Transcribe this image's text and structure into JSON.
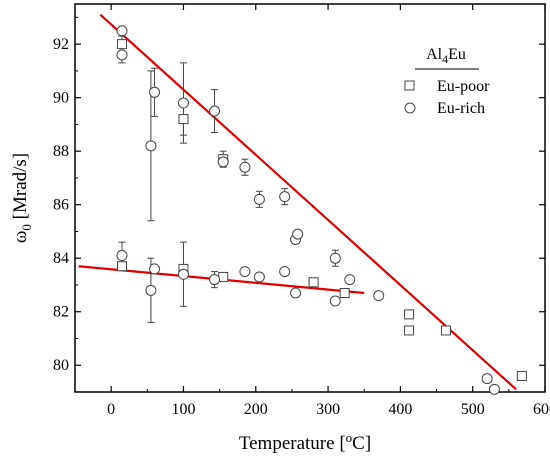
{
  "chart_data": {
    "type": "scatter",
    "title": "",
    "xlabel": {
      "base": "Temperature [",
      "sup": "o",
      "tail": "C]"
    },
    "ylabel": {
      "base": "ω",
      "sub": "0",
      "tail": " [Mrad/s]"
    },
    "xlim": [
      -50,
      600
    ],
    "ylim": [
      79,
      93.5
    ],
    "xticks": [
      0,
      100,
      200,
      300,
      400,
      500,
      600
    ],
    "yticks": [
      80,
      82,
      84,
      86,
      88,
      90,
      92
    ],
    "grid": false,
    "legend": {
      "placement": "top-right",
      "title": {
        "base": "Al",
        "sub": "4",
        "tail": "Eu"
      },
      "entries": [
        {
          "label": "Eu-poor",
          "marker": "square"
        },
        {
          "label": "Eu-rich",
          "marker": "circle"
        }
      ]
    },
    "series": [
      {
        "name": "Eu-poor",
        "marker": "square",
        "points": [
          {
            "x": 15,
            "y": 92.0,
            "err": 0.3
          },
          {
            "x": 15,
            "y": 83.7,
            "err": 0
          },
          {
            "x": 100,
            "y": 89.2,
            "err": 0.6
          },
          {
            "x": 100,
            "y": 83.6,
            "err": 0
          },
          {
            "x": 155,
            "y": 87.7,
            "err": 0.3
          },
          {
            "x": 155,
            "y": 83.3,
            "err": 0
          },
          {
            "x": 280,
            "y": 83.1,
            "err": 0
          },
          {
            "x": 323,
            "y": 82.7,
            "err": 0
          },
          {
            "x": 412,
            "y": 81.3,
            "err": 0
          },
          {
            "x": 412,
            "y": 81.9,
            "err": 0
          },
          {
            "x": 463,
            "y": 81.3,
            "err": 0
          },
          {
            "x": 568,
            "y": 79.6,
            "err": 0
          }
        ]
      },
      {
        "name": "Eu-rich",
        "marker": "circle",
        "points": [
          {
            "x": 15,
            "y": 92.5,
            "err": 0
          },
          {
            "x": 15,
            "y": 91.6,
            "err": 0.3
          },
          {
            "x": 15,
            "y": 84.1,
            "err": 0.5
          },
          {
            "x": 55,
            "y": 88.2,
            "err": 2.8
          },
          {
            "x": 55,
            "y": 82.8,
            "err": 1.2
          },
          {
            "x": 60,
            "y": 90.2,
            "err": 0.9
          },
          {
            "x": 60,
            "y": 83.6,
            "err": 0
          },
          {
            "x": 100,
            "y": 89.8,
            "err": 1.5
          },
          {
            "x": 100,
            "y": 83.4,
            "err": 1.2
          },
          {
            "x": 143,
            "y": 89.5,
            "err": 0.8
          },
          {
            "x": 143,
            "y": 83.2,
            "err": 0.3
          },
          {
            "x": 155,
            "y": 87.6,
            "err": 0
          },
          {
            "x": 185,
            "y": 87.4,
            "err": 0.3
          },
          {
            "x": 185,
            "y": 83.5,
            "err": 0
          },
          {
            "x": 205,
            "y": 86.2,
            "err": 0.3
          },
          {
            "x": 205,
            "y": 83.3,
            "err": 0
          },
          {
            "x": 240,
            "y": 86.3,
            "err": 0.3
          },
          {
            "x": 240,
            "y": 83.5,
            "err": 0
          },
          {
            "x": 255,
            "y": 84.7,
            "err": 0
          },
          {
            "x": 255,
            "y": 82.7,
            "err": 0
          },
          {
            "x": 258,
            "y": 84.9,
            "err": 0
          },
          {
            "x": 310,
            "y": 84.0,
            "err": 0.3
          },
          {
            "x": 310,
            "y": 82.4,
            "err": 0
          },
          {
            "x": 330,
            "y": 83.2,
            "err": 0
          },
          {
            "x": 370,
            "y": 82.6,
            "err": 0
          },
          {
            "x": 520,
            "y": 79.5,
            "err": 0
          },
          {
            "x": 530,
            "y": 79.1,
            "err": 0
          }
        ]
      }
    ],
    "fit_lines": [
      {
        "color": "#e00000",
        "points": [
          [
            -15,
            93.1
          ],
          [
            560,
            79.1
          ]
        ]
      },
      {
        "color": "#e00000",
        "points": [
          [
            -45,
            83.7
          ],
          [
            350,
            82.7
          ]
        ]
      }
    ]
  }
}
